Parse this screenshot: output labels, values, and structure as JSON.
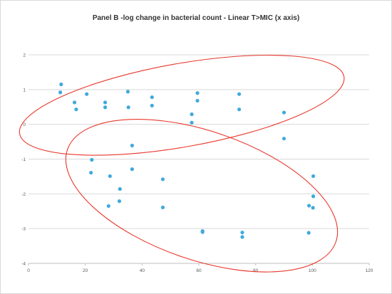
{
  "chart_data": {
    "type": "scatter",
    "title": "Panel B -log change in bacterial count - Linear T>MIC (x axis)",
    "xlabel": "",
    "ylabel": "",
    "xlim": [
      0,
      120
    ],
    "ylim": [
      -4,
      2
    ],
    "x_ticks": [
      0,
      20,
      40,
      60,
      80,
      100,
      120
    ],
    "y_ticks": [
      -4,
      -3,
      -2,
      -1,
      0,
      1,
      2
    ],
    "grid": "horizontal",
    "legend": "none",
    "marker_color": "#41a9dc",
    "annotation_color": "#e8382c",
    "points": [
      {
        "x": 11.5,
        "y": 1.15
      },
      {
        "x": 11.2,
        "y": 0.92
      },
      {
        "x": 16.2,
        "y": 0.63
      },
      {
        "x": 16.8,
        "y": 0.43
      },
      {
        "x": 20.5,
        "y": 0.87
      },
      {
        "x": 27.0,
        "y": 0.63
      },
      {
        "x": 27.0,
        "y": 0.49
      },
      {
        "x": 35.0,
        "y": 0.94
      },
      {
        "x": 35.2,
        "y": 0.49
      },
      {
        "x": 43.5,
        "y": 0.78
      },
      {
        "x": 43.5,
        "y": 0.54
      },
      {
        "x": 57.5,
        "y": 0.29
      },
      {
        "x": 57.5,
        "y": 0.05
      },
      {
        "x": 59.5,
        "y": 0.9
      },
      {
        "x": 59.5,
        "y": 0.68
      },
      {
        "x": 74.2,
        "y": 0.87
      },
      {
        "x": 74.2,
        "y": 0.43
      },
      {
        "x": 90.0,
        "y": 0.34
      },
      {
        "x": 90.0,
        "y": -0.41
      },
      {
        "x": 22.3,
        "y": -1.02
      },
      {
        "x": 22.0,
        "y": -1.39
      },
      {
        "x": 36.5,
        "y": -0.61
      },
      {
        "x": 36.5,
        "y": -1.29
      },
      {
        "x": 28.7,
        "y": -1.49
      },
      {
        "x": 32.2,
        "y": -1.86
      },
      {
        "x": 32.0,
        "y": -2.21
      },
      {
        "x": 28.2,
        "y": -2.35
      },
      {
        "x": 47.3,
        "y": -1.58
      },
      {
        "x": 47.3,
        "y": -2.39
      },
      {
        "x": 61.3,
        "y": -3.07
      },
      {
        "x": 61.3,
        "y": -3.1
      },
      {
        "x": 75.3,
        "y": -3.11
      },
      {
        "x": 75.3,
        "y": -3.24
      },
      {
        "x": 98.8,
        "y": -2.34
      },
      {
        "x": 100.2,
        "y": -2.4
      },
      {
        "x": 100.3,
        "y": -2.07
      },
      {
        "x": 100.3,
        "y": -1.49
      },
      {
        "x": 98.7,
        "y": -3.12
      }
    ],
    "annotations": [
      {
        "shape": "ellipse",
        "center": [
          54.0,
          0.55
        ],
        "radii": [
          58.0,
          1.2
        ],
        "rotation_deg": -10
      },
      {
        "shape": "ellipse",
        "center": [
          61.0,
          -2.05
        ],
        "radii": [
          50.0,
          1.85
        ],
        "rotation_deg": 19
      }
    ]
  }
}
